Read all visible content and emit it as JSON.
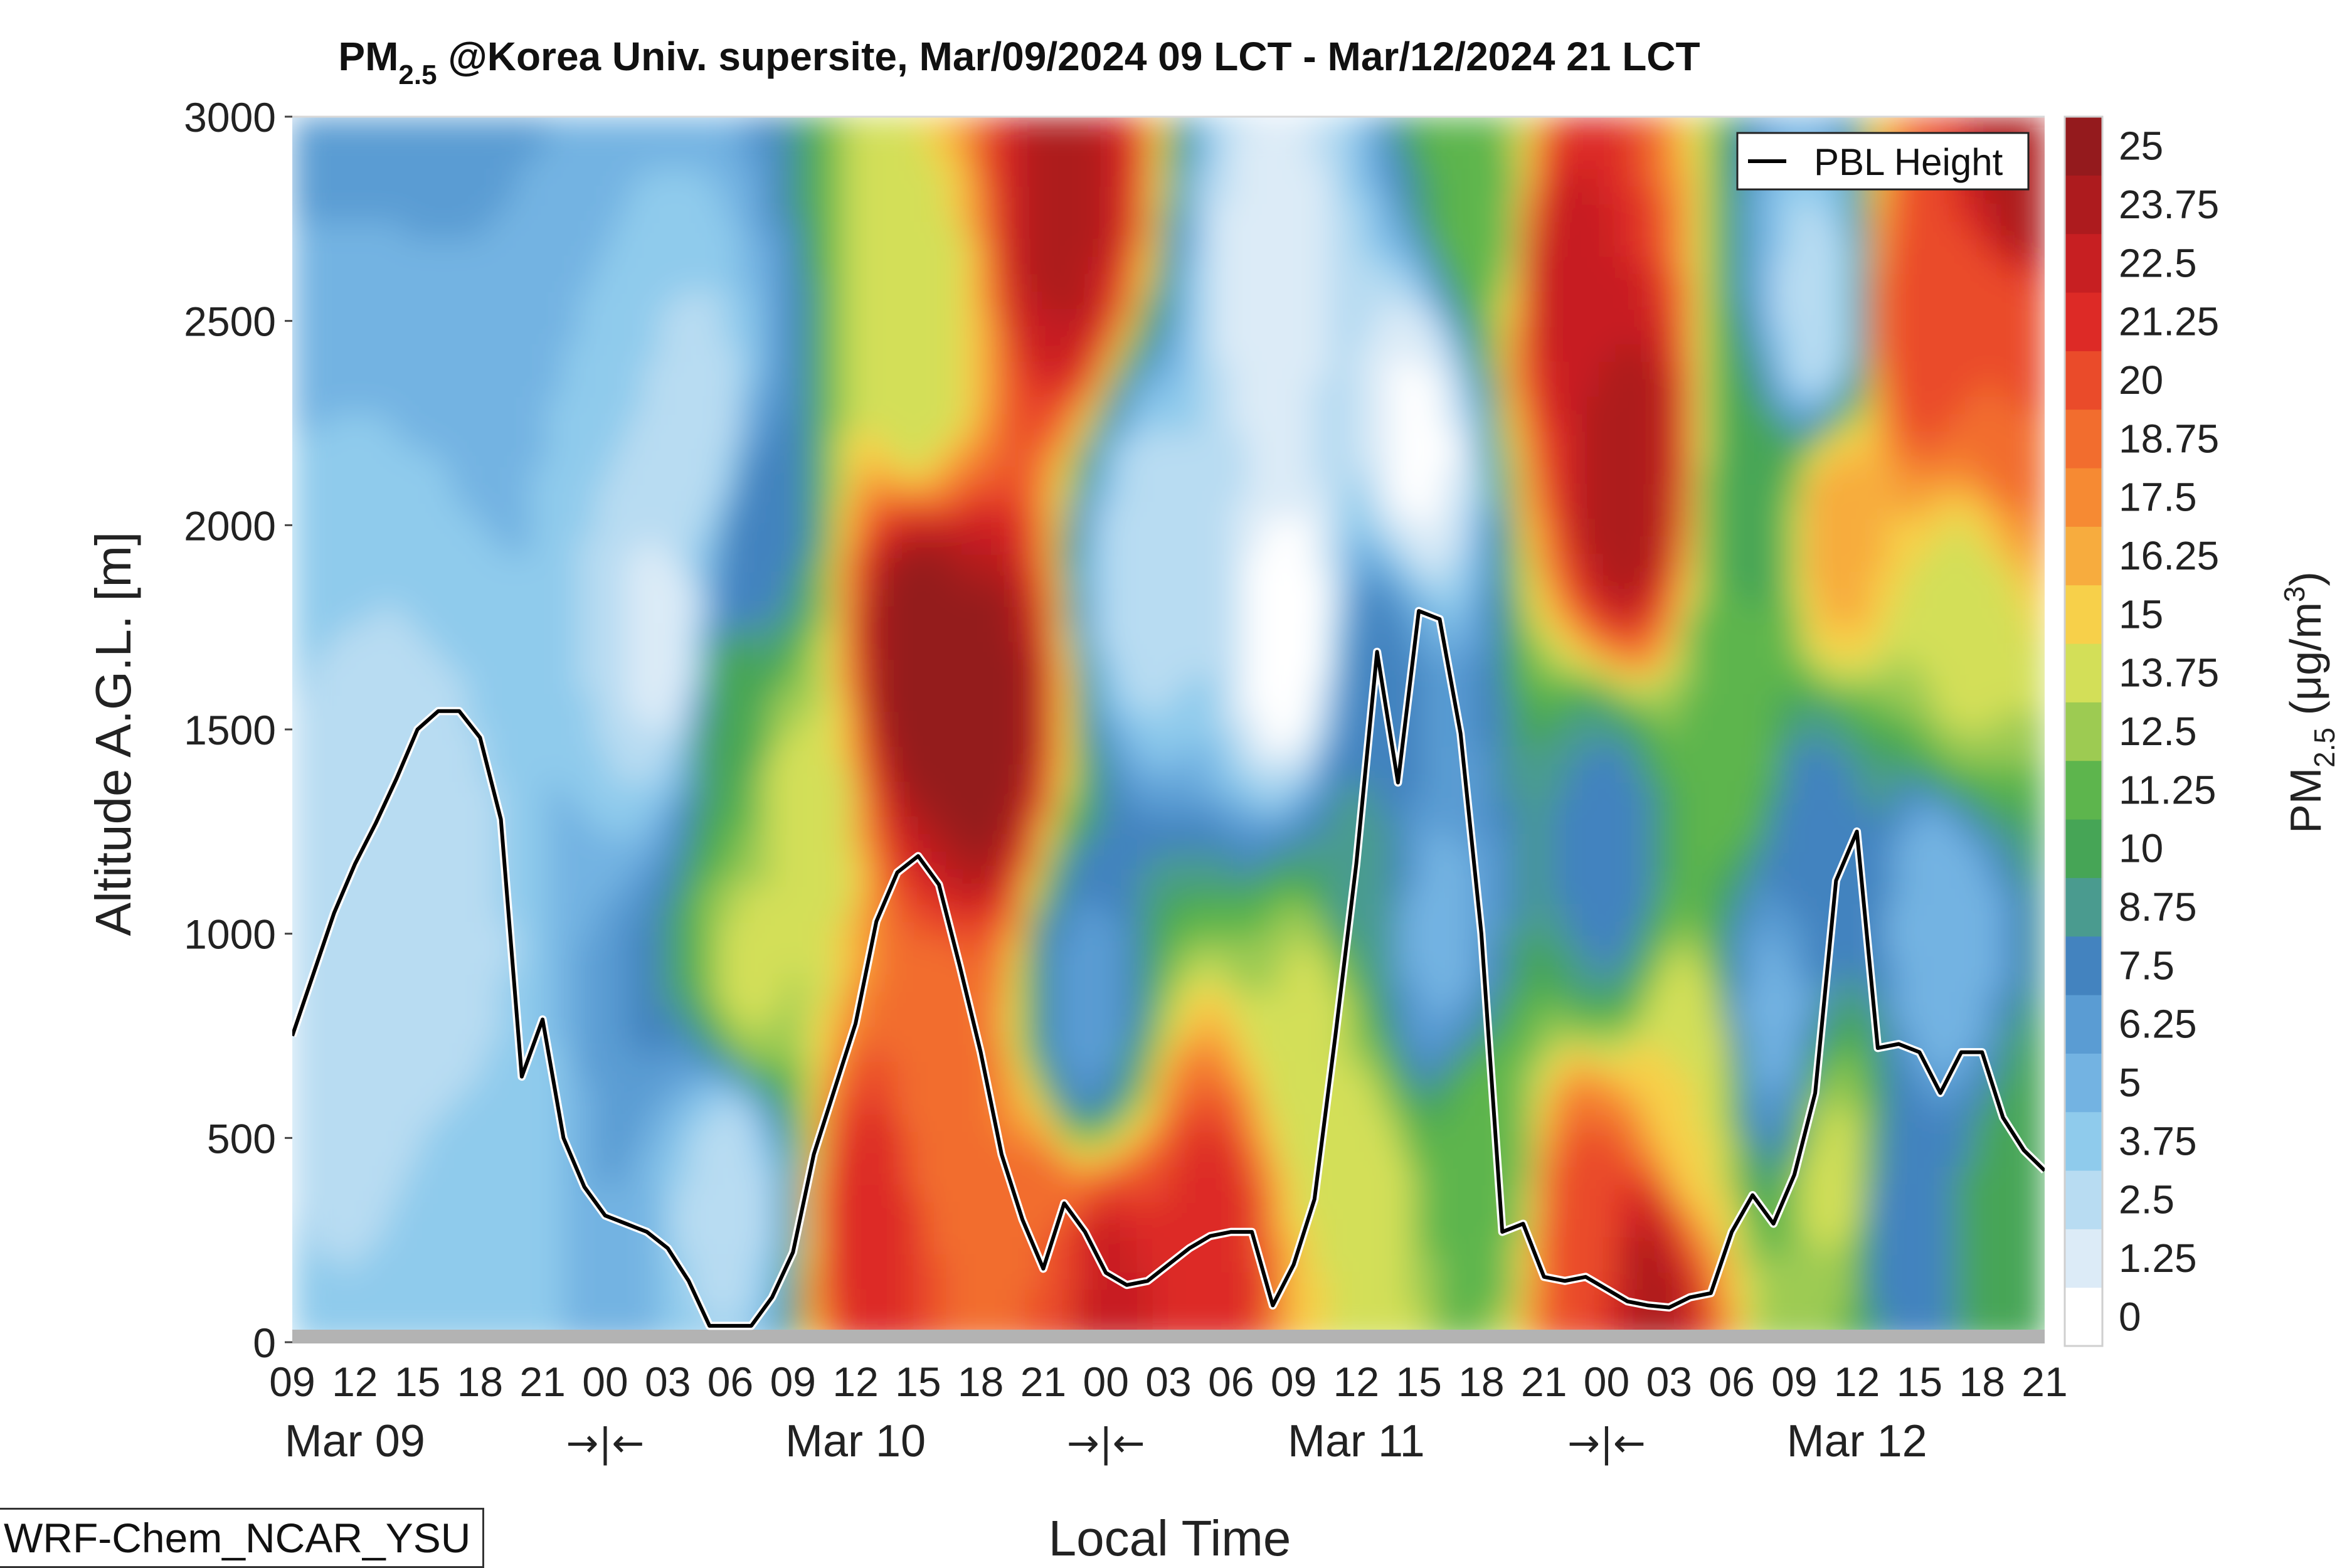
{
  "chart_data": {
    "type": "heatmap",
    "title": {
      "prefix": "PM",
      "sub": "2.5",
      "text": " @Korea Univ. supersite, Mar/09/2024 09 LCT - Mar/12/2024 21 LCT"
    },
    "xlabel": "Local Time",
    "ylabel": "Altitude A.G.L. [m]",
    "ylim": [
      0,
      3000
    ],
    "yticks": [
      0,
      500,
      1000,
      1500,
      2000,
      2500,
      3000
    ],
    "x_hours": [
      9,
      12,
      15,
      18,
      21,
      24,
      27,
      30,
      33,
      36,
      39,
      42,
      45,
      48,
      51,
      54,
      57,
      60,
      63,
      66,
      69,
      72,
      75,
      78,
      81,
      84,
      87,
      90,
      93
    ],
    "x_tick_labels": [
      "09",
      "12",
      "15",
      "18",
      "21",
      "00",
      "03",
      "06",
      "09",
      "12",
      "15",
      "18",
      "21",
      "00",
      "03",
      "06",
      "09",
      "12",
      "15",
      "18",
      "21",
      "00",
      "03",
      "06",
      "09",
      "12",
      "15",
      "18",
      "21"
    ],
    "day_labels": [
      {
        "hour": 12,
        "text": "Mar 09"
      },
      {
        "hour": 36,
        "text": "Mar 10"
      },
      {
        "hour": 60,
        "text": "Mar 11"
      },
      {
        "hour": 84,
        "text": "Mar 12"
      }
    ],
    "day_separators": [
      {
        "hour": 24,
        "text": "→|←"
      },
      {
        "hour": 48,
        "text": "→|←"
      },
      {
        "hour": 72,
        "text": "→|←"
      }
    ],
    "colorbar": {
      "label_main": "PM",
      "label_sub": "2.5",
      "label_unit": " (μg/m",
      "label_sup": "3",
      "label_close": ")",
      "levels": [
        "0",
        "1.25",
        "2.5",
        "3.75",
        "5",
        "6.25",
        "7.5",
        "8.75",
        "10",
        "11.25",
        "12.5",
        "13.75",
        "15",
        "16.25",
        "17.5",
        "18.75",
        "20",
        "21.25",
        "22.5",
        "23.75",
        "25"
      ],
      "colors": [
        "#ffffff",
        "#dcebf7",
        "#b8dcf2",
        "#8fcbec",
        "#73b3e2",
        "#5a9cd3",
        "#4383bf",
        "#4a9b8f",
        "#46a556",
        "#5db54d",
        "#9dcb52",
        "#d3df58",
        "#f7d04a",
        "#f7ac3e",
        "#f68a33",
        "#f26d2e",
        "#ea4b2a",
        "#dd2a26",
        "#c71f22",
        "#ad1b1e",
        "#941a1d"
      ]
    },
    "field_anchors": [
      {
        "hour": 15,
        "alt": 900,
        "value": 3
      },
      {
        "hour": 17,
        "alt": 300,
        "value": 4
      },
      {
        "hour": 27,
        "alt": 1700,
        "value": 2
      },
      {
        "hour": 29,
        "alt": 2200,
        "value": 3
      },
      {
        "hour": 30,
        "alt": 1500,
        "value": 11
      },
      {
        "hour": 31,
        "alt": 2000,
        "value": 8
      },
      {
        "hour": 33,
        "alt": 1300,
        "value": 14
      },
      {
        "hour": 31,
        "alt": 900,
        "value": 14
      },
      {
        "hour": 30,
        "alt": 400,
        "value": 3
      },
      {
        "hour": 39,
        "alt": 1700,
        "value": 26
      },
      {
        "hour": 42,
        "alt": 1500,
        "value": 26
      },
      {
        "hour": 39,
        "alt": 2400,
        "value": 14
      },
      {
        "hour": 37,
        "alt": 300,
        "value": 22
      },
      {
        "hour": 40,
        "alt": 600,
        "value": 19
      },
      {
        "hour": 46,
        "alt": 2750,
        "value": 24
      },
      {
        "hour": 45,
        "alt": 200,
        "value": 20
      },
      {
        "hour": 48,
        "alt": 100,
        "value": 23
      },
      {
        "hour": 50,
        "alt": 1900,
        "value": 3
      },
      {
        "hour": 47,
        "alt": 800,
        "value": 7
      },
      {
        "hour": 53,
        "alt": 200,
        "value": 22
      },
      {
        "hour": 56,
        "alt": 2600,
        "value": 2
      },
      {
        "hour": 57,
        "alt": 1700,
        "value": 0.5
      },
      {
        "hour": 58,
        "alt": 800,
        "value": 14
      },
      {
        "hour": 60,
        "alt": 1200,
        "value": 9
      },
      {
        "hour": 61,
        "alt": 1600,
        "value": 8
      },
      {
        "hour": 60,
        "alt": 300,
        "value": 15
      },
      {
        "hour": 63,
        "alt": 2200,
        "value": 1
      },
      {
        "hour": 64,
        "alt": 1000,
        "value": 6
      },
      {
        "hour": 66,
        "alt": 400,
        "value": 12
      },
      {
        "hour": 66,
        "alt": 2800,
        "value": 12
      },
      {
        "hour": 70,
        "alt": 2600,
        "value": 23
      },
      {
        "hour": 73,
        "alt": 2100,
        "value": 25
      },
      {
        "hour": 72,
        "alt": 1200,
        "value": 8
      },
      {
        "hour": 71,
        "alt": 200,
        "value": 21
      },
      {
        "hour": 74,
        "alt": 100,
        "value": 24
      },
      {
        "hour": 76,
        "alt": 600,
        "value": 15
      },
      {
        "hour": 78,
        "alt": 1500,
        "value": 12
      },
      {
        "hour": 79,
        "alt": 2000,
        "value": 11
      },
      {
        "hour": 80,
        "alt": 800,
        "value": 6
      },
      {
        "hour": 82,
        "alt": 2500,
        "value": 3
      },
      {
        "hour": 83,
        "alt": 2000,
        "value": 17
      },
      {
        "hour": 82,
        "alt": 1200,
        "value": 8
      },
      {
        "hour": 83,
        "alt": 400,
        "value": 14
      },
      {
        "hour": 87,
        "alt": 2500,
        "value": 21
      },
      {
        "hour": 86,
        "alt": 300,
        "value": 8
      },
      {
        "hour": 88,
        "alt": 1000,
        "value": 5
      },
      {
        "hour": 89,
        "alt": 1700,
        "value": 14
      },
      {
        "hour": 91,
        "alt": 2400,
        "value": 20
      },
      {
        "hour": 92,
        "alt": 2900,
        "value": 25
      },
      {
        "hour": 92,
        "alt": 300,
        "value": 11
      }
    ],
    "series": [
      {
        "name": "PBL Height",
        "color": "#000000",
        "x": [
          9,
          10,
          11,
          12,
          13,
          14,
          15,
          16,
          17,
          18,
          19,
          20,
          21,
          22,
          23,
          24,
          25,
          26,
          27,
          28,
          29,
          30,
          31,
          32,
          33,
          34,
          35,
          36,
          37,
          38,
          39,
          40,
          41,
          42,
          43,
          44,
          45,
          46,
          47,
          48,
          49,
          50,
          51,
          52,
          53,
          54,
          55,
          56,
          57,
          58,
          59,
          60,
          61,
          62,
          63,
          64,
          65,
          66,
          67,
          68,
          69,
          70,
          71,
          72,
          73,
          74,
          75,
          76,
          77,
          78,
          79,
          80,
          81,
          82,
          83,
          84,
          85,
          86,
          87,
          88,
          89,
          90,
          91,
          92,
          93
        ],
        "y": [
          750,
          900,
          1050,
          1170,
          1270,
          1380,
          1500,
          1545,
          1545,
          1480,
          1280,
          650,
          790,
          500,
          380,
          310,
          290,
          270,
          230,
          150,
          40,
          40,
          40,
          110,
          220,
          460,
          620,
          780,
          1030,
          1150,
          1190,
          1120,
          920,
          710,
          460,
          300,
          180,
          340,
          270,
          170,
          140,
          150,
          190,
          230,
          260,
          270,
          270,
          90,
          190,
          350,
          750,
          1170,
          1690,
          1370,
          1790,
          1770,
          1490,
          1000,
          270,
          290,
          160,
          150,
          160,
          130,
          100,
          90,
          85,
          110,
          120,
          270,
          360,
          290,
          410,
          610,
          1130,
          1250,
          720,
          730,
          710,
          610,
          710,
          710,
          550,
          470,
          420
        ]
      }
    ],
    "legend": {
      "position": "top-right",
      "entries": [
        "PBL Height"
      ]
    },
    "grid": false
  },
  "footer_tag": "WRF-Chem_NCAR_YSU"
}
